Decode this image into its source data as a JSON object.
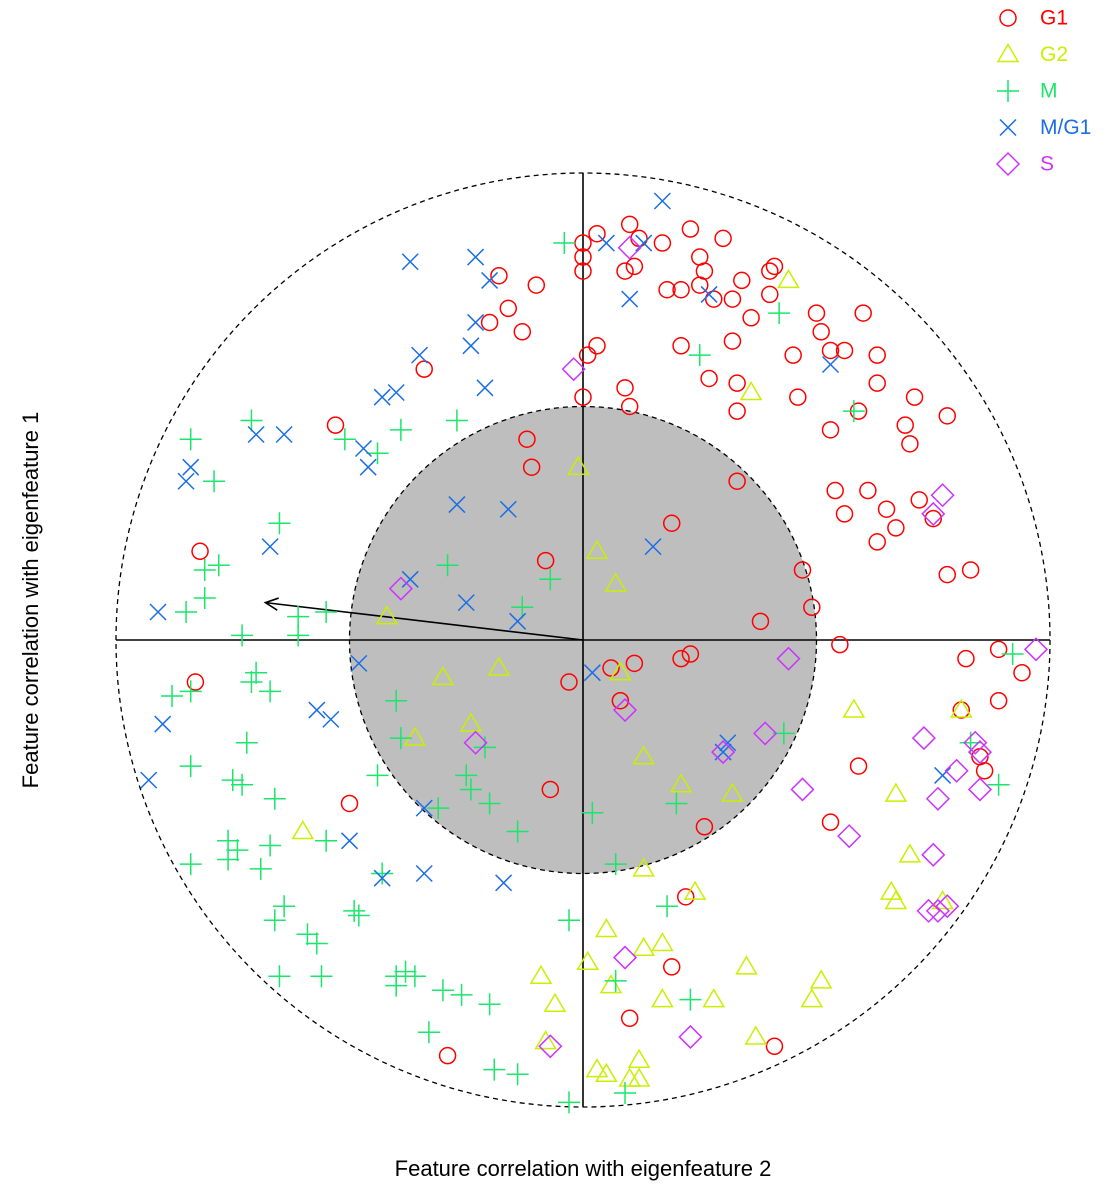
{
  "chart_data": {
    "type": "scatter",
    "x_label": "Feature correlation with eigenfeature 2",
    "y_label": "Feature correlation with eigenfeature 1",
    "xlim": [
      -1,
      1
    ],
    "ylim": [
      -1,
      1
    ],
    "outer_radius": 1,
    "inner_radius": 0.5,
    "inner_fill": "#bebebe",
    "arrow": {
      "x": -0.68,
      "y": 0.08
    },
    "legend": "top-right",
    "series": [
      {
        "name": "G1",
        "color": "#ff0000",
        "shape": "circle",
        "x": [
          0.03,
          0.1,
          0.0,
          0.12,
          0.17,
          0.23,
          0.3,
          0.0,
          0.0,
          0.09,
          0.11,
          -0.18,
          -0.1,
          0.25,
          0.26,
          0.34,
          0.4,
          0.41,
          0.18,
          0.21,
          0.25,
          0.28,
          0.32,
          0.4,
          -0.2,
          -0.16,
          -0.13,
          0.03,
          0.01,
          0.21,
          0.32,
          0.36,
          0.45,
          0.5,
          0.51,
          0.53,
          0.56,
          0.6,
          -0.34,
          -0.53,
          0.0,
          0.09,
          0.1,
          0.27,
          0.33,
          0.33,
          0.46,
          0.53,
          0.59,
          0.63,
          0.63,
          0.71,
          0.78,
          0.69,
          0.7,
          -0.12,
          -0.11,
          0.33,
          0.54,
          0.61,
          0.72,
          0.56,
          0.65,
          0.67,
          0.63,
          0.75,
          0.78,
          0.83,
          0.19,
          -0.08,
          0.47,
          0.49,
          0.38,
          0.55,
          -0.82,
          -0.83,
          -0.03,
          0.06,
          0.11,
          0.21,
          0.23,
          0.08,
          0.89,
          0.82,
          0.94,
          0.89,
          0.81,
          0.59,
          0.85,
          0.86,
          -0.07,
          -0.5,
          0.26,
          0.53,
          0.22,
          0.19,
          0.1,
          -0.29,
          0.41
        ],
        "values": [
          0.87,
          0.89,
          0.85,
          0.86,
          0.85,
          0.88,
          0.86,
          0.82,
          0.79,
          0.79,
          0.8,
          0.78,
          0.76,
          0.82,
          0.79,
          0.77,
          0.79,
          0.8,
          0.75,
          0.75,
          0.76,
          0.73,
          0.73,
          0.74,
          0.68,
          0.71,
          0.66,
          0.63,
          0.61,
          0.63,
          0.64,
          0.69,
          0.61,
          0.7,
          0.66,
          0.62,
          0.62,
          0.7,
          0.58,
          0.46,
          0.52,
          0.54,
          0.5,
          0.56,
          0.55,
          0.49,
          0.52,
          0.45,
          0.49,
          0.61,
          0.55,
          0.52,
          0.48,
          0.46,
          0.42,
          0.43,
          0.37,
          0.34,
          0.32,
          0.32,
          0.3,
          0.27,
          0.28,
          0.24,
          0.21,
          0.26,
          0.14,
          0.15,
          0.25,
          0.17,
          0.15,
          0.07,
          0.04,
          -0.01,
          0.19,
          -0.09,
          -0.09,
          -0.06,
          -0.05,
          -0.04,
          -0.03,
          -0.13,
          -0.02,
          -0.04,
          -0.07,
          -0.13,
          -0.15,
          -0.27,
          -0.25,
          -0.28,
          -0.32,
          -0.35,
          -0.4,
          -0.39,
          -0.55,
          -0.7,
          -0.81,
          -0.89,
          -0.87
        ]
      },
      {
        "name": "G2",
        "color": "#c8f000",
        "shape": "triangle",
        "x": [
          0.44,
          0.36,
          -0.01,
          0.03,
          0.07,
          -0.42,
          -0.3,
          -0.18,
          0.08,
          -0.24,
          -0.36,
          0.13,
          0.58,
          0.81,
          0.21,
          0.32,
          0.67,
          -0.6,
          0.7,
          0.13,
          0.24,
          0.66,
          0.67,
          0.77,
          0.05,
          0.17,
          0.13,
          0.35,
          -0.09,
          0.01,
          0.06,
          0.51,
          -0.06,
          0.17,
          0.28,
          0.49,
          0.37,
          -0.08,
          0.03,
          0.12,
          0.05,
          0.1,
          0.12
        ],
        "values": [
          0.77,
          0.53,
          0.37,
          0.19,
          0.12,
          0.05,
          -0.08,
          -0.06,
          -0.07,
          -0.18,
          -0.21,
          -0.25,
          -0.15,
          -0.15,
          -0.31,
          -0.33,
          -0.33,
          -0.41,
          -0.46,
          -0.49,
          -0.54,
          -0.54,
          -0.56,
          -0.56,
          -0.62,
          -0.65,
          -0.66,
          -0.7,
          -0.72,
          -0.69,
          -0.74,
          -0.73,
          -0.78,
          -0.77,
          -0.77,
          -0.77,
          -0.85,
          -0.86,
          -0.92,
          -0.9,
          -0.93,
          -0.94,
          -0.94
        ]
      },
      {
        "name": "M",
        "color": "#19e66b",
        "shape": "plus",
        "x": [
          -0.04,
          0.42,
          0.25,
          0.58,
          -0.27,
          -0.39,
          -0.51,
          -0.71,
          -0.84,
          -0.44,
          -0.79,
          -0.65,
          -0.29,
          -0.07,
          -0.13,
          -0.78,
          -0.81,
          -0.81,
          -0.85,
          -0.55,
          -0.61,
          -0.61,
          -0.73,
          -0.7,
          -0.71,
          -0.67,
          -0.84,
          -0.88,
          -0.72,
          -0.84,
          -0.75,
          -0.73,
          -0.66,
          -0.4,
          -0.39,
          -0.21,
          -0.44,
          -0.25,
          -0.24,
          -0.2,
          -0.31,
          -0.14,
          0.02,
          0.2,
          0.43,
          0.83,
          0.89,
          0.92,
          -0.76,
          -0.74,
          -0.67,
          -0.84,
          -0.76,
          -0.69,
          -0.55,
          -0.43,
          0.07,
          0.18,
          -0.64,
          -0.66,
          -0.49,
          -0.48,
          -0.03,
          -0.59,
          -0.57,
          -0.65,
          -0.56,
          -0.38,
          -0.4,
          -0.36,
          -0.4,
          -0.3,
          -0.26,
          -0.2,
          0.07,
          0.23,
          -0.33,
          -0.19,
          -0.14,
          -0.03,
          0.09
        ],
        "values": [
          0.85,
          0.7,
          0.61,
          0.49,
          0.47,
          0.45,
          0.43,
          0.47,
          0.43,
          0.4,
          0.34,
          0.25,
          0.16,
          0.13,
          0.07,
          0.16,
          0.15,
          0.09,
          0.06,
          0.06,
          0.05,
          0.01,
          0.01,
          -0.07,
          -0.09,
          -0.11,
          -0.11,
          -0.12,
          -0.22,
          -0.27,
          -0.3,
          -0.31,
          -0.34,
          -0.13,
          -0.21,
          -0.23,
          -0.29,
          -0.29,
          -0.32,
          -0.35,
          -0.36,
          -0.41,
          -0.37,
          -0.35,
          -0.2,
          -0.22,
          -0.31,
          -0.03,
          -0.43,
          -0.45,
          -0.44,
          -0.48,
          -0.47,
          -0.49,
          -0.43,
          -0.5,
          -0.48,
          -0.57,
          -0.57,
          -0.6,
          -0.58,
          -0.59,
          -0.6,
          -0.63,
          -0.65,
          -0.72,
          -0.72,
          -0.71,
          -0.72,
          -0.72,
          -0.74,
          -0.75,
          -0.76,
          -0.78,
          -0.73,
          -0.77,
          -0.84,
          -0.92,
          -0.93,
          -0.99,
          -0.97
        ]
      },
      {
        "name": "M/G1",
        "color": "#1a6ee6",
        "shape": "cross",
        "x": [
          0.17,
          0.05,
          0.13,
          -0.37,
          -0.23,
          -0.2,
          0.1,
          0.27,
          -0.23,
          -0.24,
          -0.35,
          -0.4,
          -0.43,
          -0.21,
          0.53,
          -0.7,
          -0.64,
          -0.47,
          -0.46,
          -0.84,
          -0.85,
          -0.27,
          -0.16,
          0.15,
          -0.67,
          -0.37,
          -0.25,
          -0.14,
          -0.91,
          -0.48,
          0.02,
          -0.57,
          -0.54,
          -0.9,
          0.31,
          0.3,
          0.77,
          -0.93,
          -0.34,
          -0.5,
          -0.43,
          -0.34,
          -0.17
        ],
        "values": [
          0.94,
          0.85,
          0.85,
          0.81,
          0.82,
          0.77,
          0.73,
          0.74,
          0.68,
          0.63,
          0.61,
          0.53,
          0.52,
          0.54,
          0.59,
          0.44,
          0.44,
          0.41,
          0.37,
          0.37,
          0.34,
          0.29,
          0.28,
          0.2,
          0.2,
          0.13,
          0.08,
          0.04,
          0.06,
          -0.05,
          -0.07,
          -0.15,
          -0.17,
          -0.18,
          -0.22,
          -0.24,
          -0.29,
          -0.3,
          -0.36,
          -0.43,
          -0.51,
          -0.5,
          -0.52
        ]
      },
      {
        "name": "S",
        "color": "#cc33ff",
        "shape": "diamond",
        "x": [
          0.1,
          -0.02,
          0.77,
          0.75,
          -0.39,
          0.97,
          0.44,
          0.09,
          -0.23,
          0.39,
          0.73,
          0.84,
          0.85,
          0.3,
          0.8,
          0.85,
          0.76,
          0.47,
          0.57,
          0.75,
          0.78,
          0.76,
          0.74,
          0.09,
          0.23,
          -0.07
        ],
        "values": [
          0.84,
          0.58,
          0.31,
          0.27,
          0.11,
          -0.02,
          -0.04,
          -0.15,
          -0.22,
          -0.2,
          -0.21,
          -0.22,
          -0.24,
          -0.24,
          -0.28,
          -0.32,
          -0.34,
          -0.32,
          -0.42,
          -0.46,
          -0.57,
          -0.58,
          -0.58,
          -0.68,
          -0.85,
          -0.87
        ]
      }
    ]
  }
}
